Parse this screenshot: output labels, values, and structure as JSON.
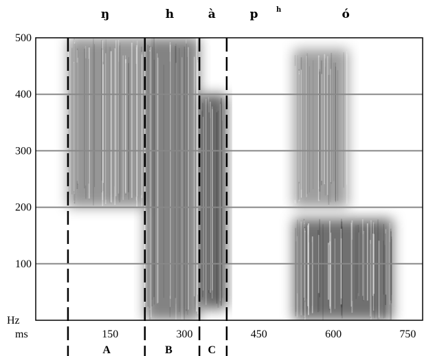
{
  "chart_data": {
    "type": "heatmap",
    "x_unit": "ms",
    "y_unit": "Hz",
    "x_ticks": [
      150,
      300,
      450,
      600,
      750
    ],
    "y_ticks": [
      100,
      200,
      300,
      400,
      500
    ],
    "xlim": [
      0,
      780
    ],
    "ylim": [
      0,
      500
    ],
    "y_gridlines": [
      100,
      200,
      300,
      400
    ],
    "grid": true,
    "colormap": "grayscale (darker = higher energy)",
    "phonemes": [
      {
        "label": "ŋ",
        "x": 140
      },
      {
        "label": "h",
        "x": 270
      },
      {
        "label": "à",
        "x": 355
      },
      {
        "label": "p",
        "x": 440
      },
      {
        "label": "h",
        "x": 490,
        "superscript": true
      },
      {
        "label": "ó",
        "x": 625
      }
    ],
    "boundaries": [
      65,
      220,
      330,
      385
    ],
    "segments": [
      {
        "label": "A",
        "x": 143
      },
      {
        "label": "B",
        "x": 268
      },
      {
        "label": "C",
        "x": 355
      }
    ],
    "energy_regions": [
      {
        "x0": 65,
        "x1": 220,
        "y0": 200,
        "y1": 500,
        "intensity": 0.55
      },
      {
        "x0": 220,
        "x1": 330,
        "y0": 0,
        "y1": 500,
        "intensity": 0.65
      },
      {
        "x0": 330,
        "x1": 385,
        "y0": 20,
        "y1": 400,
        "intensity": 0.8
      },
      {
        "x0": 520,
        "x1": 630,
        "y0": 200,
        "y1": 480,
        "intensity": 0.5
      },
      {
        "x0": 520,
        "x1": 720,
        "y0": 0,
        "y1": 180,
        "intensity": 0.75
      }
    ]
  }
}
